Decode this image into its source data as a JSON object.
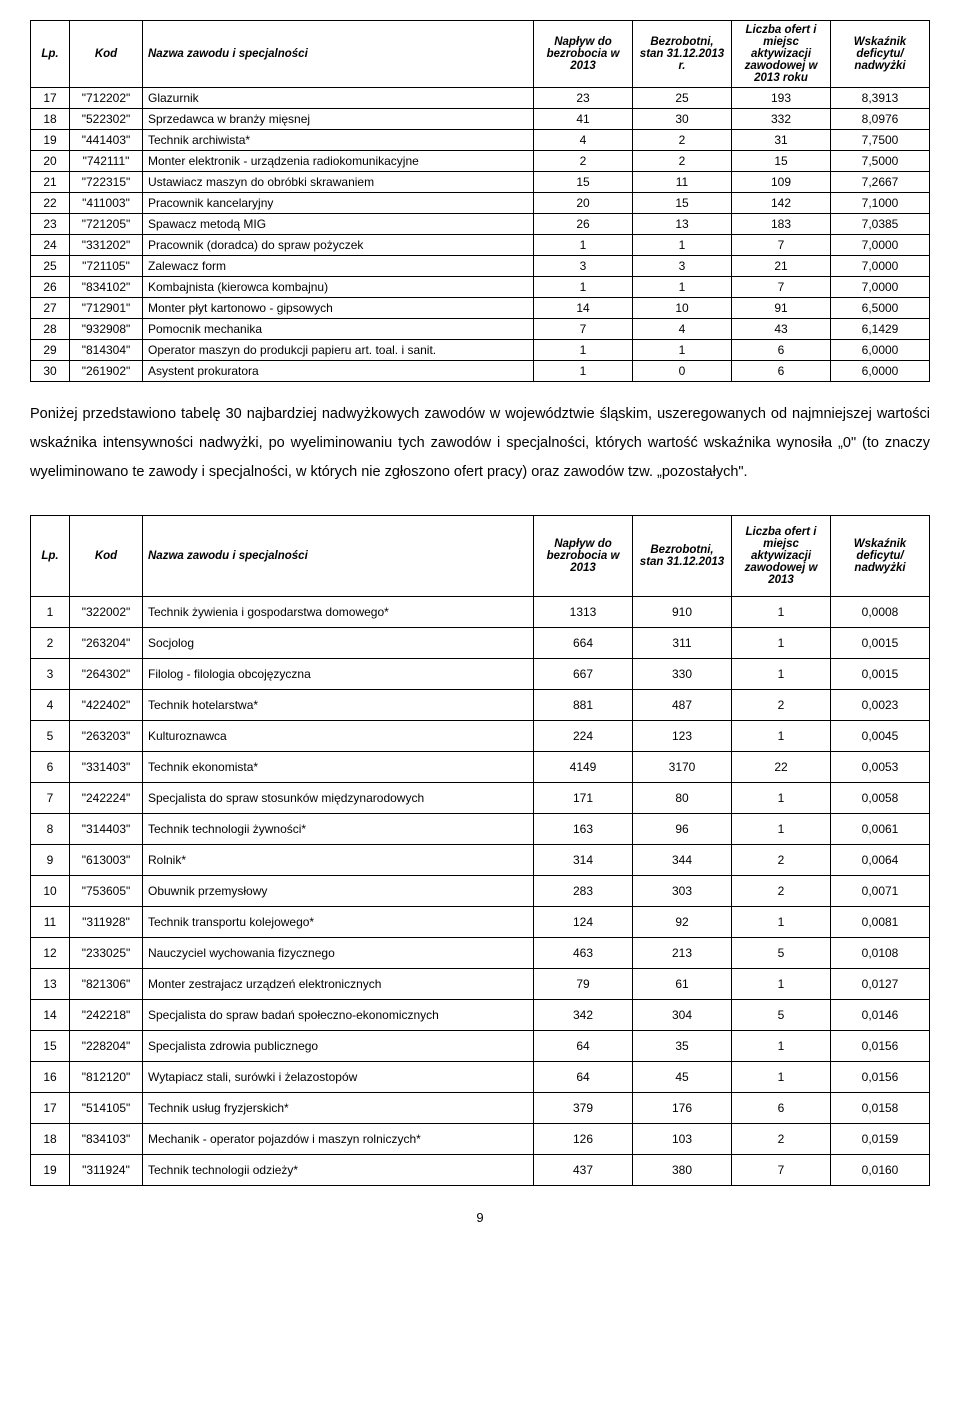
{
  "table1": {
    "headers": [
      "Lp.",
      "Kod",
      "Nazwa zawodu i specjalności",
      "Napływ do bezrobocia w 2013",
      "Bezrobotni, stan 31.12.2013 r.",
      "Liczba ofert i miejsc aktywizacji zawodowej w 2013 roku",
      "Wskaźnik deficytu/ nadwyżki"
    ],
    "rows": [
      [
        "17",
        "\"712202\"",
        "Glazurnik",
        "23",
        "25",
        "193",
        "8,3913"
      ],
      [
        "18",
        "\"522302\"",
        "Sprzedawca w branży mięsnej",
        "41",
        "30",
        "332",
        "8,0976"
      ],
      [
        "19",
        "\"441403\"",
        "Technik archiwista*",
        "4",
        "2",
        "31",
        "7,7500"
      ],
      [
        "20",
        "\"742111\"",
        "Monter elektronik - urządzenia radiokomunikacyjne",
        "2",
        "2",
        "15",
        "7,5000"
      ],
      [
        "21",
        "\"722315\"",
        "Ustawiacz maszyn do obróbki skrawaniem",
        "15",
        "11",
        "109",
        "7,2667"
      ],
      [
        "22",
        "\"411003\"",
        "Pracownik kancelaryjny",
        "20",
        "15",
        "142",
        "7,1000"
      ],
      [
        "23",
        "\"721205\"",
        "Spawacz metodą MIG",
        "26",
        "13",
        "183",
        "7,0385"
      ],
      [
        "24",
        "\"331202\"",
        "Pracownik (doradca) do spraw pożyczek",
        "1",
        "1",
        "7",
        "7,0000"
      ],
      [
        "25",
        "\"721105\"",
        "Zalewacz form",
        "3",
        "3",
        "21",
        "7,0000"
      ],
      [
        "26",
        "\"834102\"",
        "Kombajnista (kierowca kombajnu)",
        "1",
        "1",
        "7",
        "7,0000"
      ],
      [
        "27",
        "\"712901\"",
        "Monter płyt kartonowo - gipsowych",
        "14",
        "10",
        "91",
        "6,5000"
      ],
      [
        "28",
        "\"932908\"",
        "Pomocnik mechanika",
        "7",
        "4",
        "43",
        "6,1429"
      ],
      [
        "29",
        "\"814304\"",
        "Operator maszyn do produkcji papieru art. toal. i sanit.",
        "1",
        "1",
        "6",
        "6,0000"
      ],
      [
        "30",
        "\"261902\"",
        "Asystent prokuratora",
        "1",
        "0",
        "6",
        "6,0000"
      ]
    ]
  },
  "paragraph_html": "Poniżej przedstawiono tabelę 30 najbardziej nadwyżkowych zawodów w województwie śląskim, uszeregowanych od najmniejszej wartości wskaźnika intensywności nadwyżki, po wyeliminowaniu tych zawodów i specjalności, których wartość wskaźnika wynosiła „0\" (to znaczy wyeliminowano te zawody i specjalności, w których nie zgłoszono ofert pracy) oraz zawodów tzw. „pozostałych\".",
  "table2": {
    "headers": [
      "Lp.",
      "Kod",
      "Nazwa zawodu i specjalności",
      "Napływ do bezrobocia w 2013",
      "Bezrobotni, stan 31.12.2013",
      "Liczba ofert i miejsc aktywizacji zawodowej w 2013",
      "Wskaźnik deficytu/ nadwyżki"
    ],
    "rows": [
      [
        "1",
        "\"322002\"",
        "Technik żywienia i gospodarstwa domowego*",
        "1313",
        "910",
        "1",
        "0,0008"
      ],
      [
        "2",
        "\"263204\"",
        "Socjolog",
        "664",
        "311",
        "1",
        "0,0015"
      ],
      [
        "3",
        "\"264302\"",
        "Filolog - filologia obcojęzyczna",
        "667",
        "330",
        "1",
        "0,0015"
      ],
      [
        "4",
        "\"422402\"",
        "Technik hotelarstwa*",
        "881",
        "487",
        "2",
        "0,0023"
      ],
      [
        "5",
        "\"263203\"",
        "Kulturoznawca",
        "224",
        "123",
        "1",
        "0,0045"
      ],
      [
        "6",
        "\"331403\"",
        "Technik ekonomista*",
        "4149",
        "3170",
        "22",
        "0,0053"
      ],
      [
        "7",
        "\"242224\"",
        "Specjalista do spraw stosunków międzynarodowych",
        "171",
        "80",
        "1",
        "0,0058"
      ],
      [
        "8",
        "\"314403\"",
        "Technik technologii żywności*",
        "163",
        "96",
        "1",
        "0,0061"
      ],
      [
        "9",
        "\"613003\"",
        "Rolnik*",
        "314",
        "344",
        "2",
        "0,0064"
      ],
      [
        "10",
        "\"753605\"",
        "Obuwnik przemysłowy",
        "283",
        "303",
        "2",
        "0,0071"
      ],
      [
        "11",
        "\"311928\"",
        "Technik transportu kolejowego*",
        "124",
        "92",
        "1",
        "0,0081"
      ],
      [
        "12",
        "\"233025\"",
        "Nauczyciel wychowania fizycznego",
        "463",
        "213",
        "5",
        "0,0108"
      ],
      [
        "13",
        "\"821306\"",
        "Monter zestrajacz urządzeń elektronicznych",
        "79",
        "61",
        "1",
        "0,0127"
      ],
      [
        "14",
        "\"242218\"",
        "Specjalista do spraw badań społeczno-ekonomicznych",
        "342",
        "304",
        "5",
        "0,0146"
      ],
      [
        "15",
        "\"228204\"",
        "Specjalista zdrowia  publicznego",
        "64",
        "35",
        "1",
        "0,0156"
      ],
      [
        "16",
        "\"812120\"",
        "Wytapiacz stali, surówki i żelazostopów",
        "64",
        "45",
        "1",
        "0,0156"
      ],
      [
        "17",
        "\"514105\"",
        "Technik usług fryzjerskich*",
        "379",
        "176",
        "6",
        "0,0158"
      ],
      [
        "18",
        "\"834103\"",
        "Mechanik - operator pojazdów i maszyn rolniczych*",
        "126",
        "103",
        "2",
        "0,0159"
      ],
      [
        "19",
        "\"311924\"",
        "Technik technologii odzieży*",
        "437",
        "380",
        "7",
        "0,0160"
      ]
    ]
  },
  "page_number": "9"
}
